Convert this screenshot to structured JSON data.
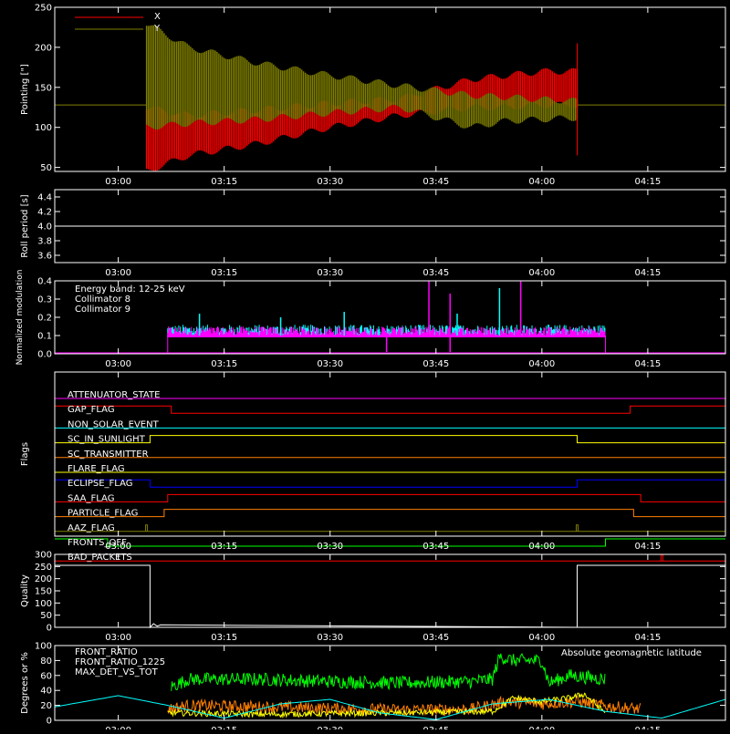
{
  "chart_data": {
    "type": "line",
    "time_ticks": [
      "03:00",
      "03:15",
      "03:30",
      "03:45",
      "04:00",
      "04:15"
    ],
    "time_range_minutes": [
      171,
      266
    ],
    "panels": [
      {
        "id": "pointing",
        "ylabel": "Pointing [\"]",
        "ylim": [
          45,
          250
        ],
        "yticks": [
          50,
          100,
          150,
          200,
          250
        ],
        "legend": [
          {
            "label": "X",
            "color": "#ff0000"
          },
          {
            "label": "Y",
            "color": "#808000"
          }
        ],
        "baseline": 128,
        "active_range_minutes": [
          184,
          245
        ],
        "series": [
          {
            "name": "X",
            "color": "#ff0000",
            "envelope_x": [
              184,
              190,
              200,
              210,
              220,
              230,
              235,
              240,
              245
            ],
            "envelope_upper": [
              125,
              115,
              122,
              130,
              136,
              160,
              165,
              170,
              170
            ],
            "envelope_lower": [
              45,
              65,
              80,
              100,
              115,
              125,
              125,
              128,
              128
            ]
          },
          {
            "name": "Y",
            "color": "#808000",
            "envelope_x": [
              184,
              190,
              200,
              210,
              220,
              230,
              235,
              240,
              245
            ],
            "envelope_upper": [
              230,
              200,
              180,
              165,
              152,
              140,
              138,
              135,
              133
            ],
            "envelope_lower": [
              100,
              105,
              110,
              118,
              125,
              100,
              108,
              110,
              112
            ]
          }
        ]
      },
      {
        "id": "roll",
        "ylabel": "Roll period [s]",
        "ylim": [
          3.5,
          4.5
        ],
        "yticks": [
          3.6,
          3.8,
          4.0,
          4.2,
          4.4
        ],
        "series": [
          {
            "name": "roll",
            "color": "#ffffff",
            "x": [
              171,
              266
            ],
            "y": [
              4.0,
              4.0
            ]
          }
        ]
      },
      {
        "id": "modulation",
        "ylabel": "Normalized modulation",
        "ylim": [
          0,
          0.4
        ],
        "yticks": [
          0.0,
          0.1,
          0.2,
          0.3,
          0.4
        ],
        "annotations": [
          {
            "text": "Energy band: 12-25 keV",
            "color": "#ffffff"
          },
          {
            "text": "Collimator 8",
            "color": "#00ffff"
          },
          {
            "text": "Collimator 9",
            "color": "#ff00ff"
          }
        ],
        "active_range_minutes": [
          187,
          249
        ],
        "baseline_level": 0.1,
        "spikes": [
          {
            "x": 191.5,
            "y": 0.22,
            "color": "#00ffff"
          },
          {
            "x": 212,
            "y": 0.23,
            "color": "#00ffff"
          },
          {
            "x": 224,
            "y": 0.4,
            "color": "#ff00ff"
          },
          {
            "x": 227,
            "y": 0.33,
            "color": "#ff00ff"
          },
          {
            "x": 234,
            "y": 0.36,
            "color": "#00ffff"
          },
          {
            "x": 237,
            "y": 0.4,
            "color": "#ff00ff"
          },
          {
            "x": 228,
            "y": 0.22,
            "color": "#00ffff"
          },
          {
            "x": 203,
            "y": 0.2,
            "color": "#00ffff"
          }
        ],
        "dips": [
          {
            "x": 218,
            "y": 0.01,
            "color": "#ff00ff"
          },
          {
            "x": 227,
            "y": 0.01,
            "color": "#ff00ff"
          }
        ]
      },
      {
        "id": "flags",
        "ylabel": "Flags",
        "flags": [
          {
            "label": "ATTENUATOR_STATE",
            "color": "#ff00ff",
            "segments": [
              [
                171,
                266,
                0
              ]
            ]
          },
          {
            "label": "GAP_FLAG",
            "color": "#ff0000",
            "segments": [
              [
                171,
                187.5,
                1
              ],
              [
                187.5,
                252.5,
                0
              ],
              [
                252.5,
                266,
                1
              ]
            ]
          },
          {
            "label": "NON_SOLAR_EVENT",
            "color": "#00ffff",
            "segments": [
              [
                171,
                266,
                0
              ]
            ]
          },
          {
            "label": "SC_IN_SUNLIGHT",
            "color": "#ffff00",
            "segments": [
              [
                171,
                184.5,
                0
              ],
              [
                184.5,
                245,
                1
              ],
              [
                245,
                266,
                0
              ]
            ]
          },
          {
            "label": "SC_TRANSMITTER",
            "color": "#ff8000",
            "segments": [
              [
                171,
                266,
                0
              ]
            ]
          },
          {
            "label": "FLARE_FLAG",
            "color": "#ffff00",
            "segments": [
              [
                171,
                266,
                0
              ]
            ]
          },
          {
            "label": "ECLIPSE_FLAG",
            "color": "#0000ff",
            "segments": [
              [
                171,
                184.5,
                1
              ],
              [
                184.5,
                245,
                0
              ],
              [
                245,
                266,
                1
              ]
            ]
          },
          {
            "label": "SAA_FLAG",
            "color": "#ff0000",
            "segments": [
              [
                171,
                187,
                0
              ],
              [
                187,
                254,
                1
              ],
              [
                254,
                266,
                0
              ]
            ]
          },
          {
            "label": "PARTICLE_FLAG",
            "color": "#ff8000",
            "segments": [
              [
                171,
                186.5,
                0
              ],
              [
                186.5,
                253,
                1
              ],
              [
                253,
                266,
                0
              ]
            ]
          },
          {
            "label": "AAZ_FLAG",
            "color": "#808000",
            "segments": [
              [
                171,
                266,
                0
              ]
            ],
            "blips": [
              184,
              245
            ]
          },
          {
            "label": "FRONTS_OFF",
            "color": "#00ff00",
            "segments": [
              [
                171,
                178.5,
                1
              ],
              [
                178.5,
                249,
                0
              ],
              [
                249,
                266,
                1
              ]
            ]
          },
          {
            "label": "BAD_PACKETS",
            "color": "#ff0000",
            "segments": [
              [
                171,
                266,
                0
              ]
            ],
            "blips": [
              257
            ]
          }
        ]
      },
      {
        "id": "quality",
        "ylabel": "Quality",
        "ylim": [
          0,
          300
        ],
        "yticks": [
          0,
          50,
          100,
          150,
          200,
          250,
          300
        ],
        "series": [
          {
            "name": "quality",
            "color": "#ffffff",
            "x": [
              171,
              184.5,
              184.5,
              185,
              185.5,
              186,
              245,
              245,
              266
            ],
            "y": [
              255,
              255,
              0,
              15,
              5,
              10,
              0,
              255,
              255
            ]
          }
        ]
      },
      {
        "id": "ratios",
        "ylabel": "Degrees or %",
        "ylim": [
          0,
          100
        ],
        "yticks": [
          0,
          20,
          40,
          60,
          80,
          100
        ],
        "legend": [
          {
            "label": "FRONT_RATIO",
            "color": "#ffff00"
          },
          {
            "label": "FRONT_RATIO_1225",
            "color": "#00ff00"
          },
          {
            "label": "MAX_DET_VS_TOT",
            "color": "#ff8000"
          }
        ],
        "annotation": {
          "text": "Absolute geomagnetic latitude",
          "color": "#00ffff"
        },
        "series": [
          {
            "name": "FRONT_RATIO_1225",
            "color": "#00ff00",
            "x": [
              187.5,
              190,
              200,
              210,
              220,
              230,
              233,
              234,
              236,
              240,
              241,
              244,
              249,
              249
            ],
            "y": [
              45,
              55,
              55,
              52,
              50,
              52,
              55,
              85,
              80,
              80,
              50,
              60,
              55,
              10
            ]
          },
          {
            "name": "MAX_DET_VS_TOT",
            "color": "#ff8000",
            "x": [
              187,
              190,
              200,
              210,
              220,
              230,
              235,
              240,
              245,
              250,
              254
            ],
            "y": [
              15,
              20,
              18,
              16,
              14,
              15,
              25,
              22,
              25,
              18,
              15
            ]
          },
          {
            "name": "FRONT_RATIO",
            "color": "#ffff00",
            "x": [
              187,
              200,
              220,
              233,
              236,
              240,
              244,
              246,
              249
            ],
            "y": [
              10,
              8,
              10,
              12,
              30,
              25,
              30,
              35,
              10
            ]
          },
          {
            "name": "Absolute geomagnetic latitude",
            "color": "#00ffff",
            "x": [
              171,
              180,
              187,
              195,
              203,
              210,
              217,
              225,
              233,
              241,
              249,
              257,
              266
            ],
            "y": [
              18,
              33,
              20,
              3,
              22,
              28,
              10,
              1,
              22,
              28,
              12,
              3,
              28
            ]
          }
        ]
      }
    ]
  }
}
